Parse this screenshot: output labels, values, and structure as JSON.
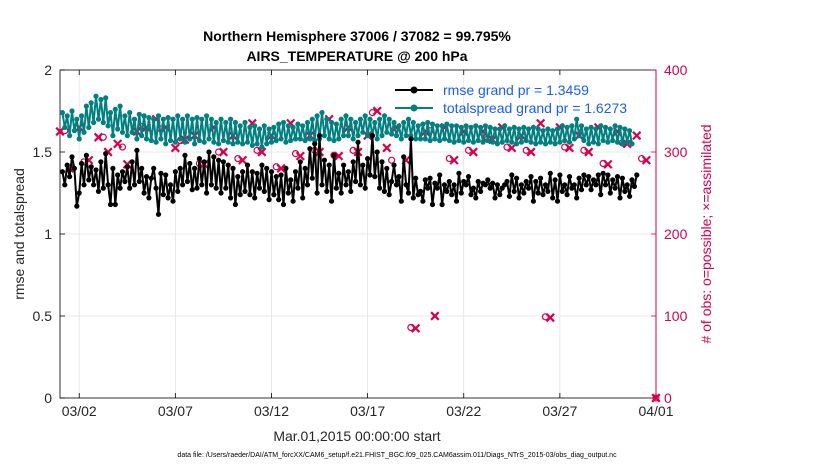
{
  "chart_data": {
    "type": "line",
    "title_line1": "Northern Hemisphere 37006 / 37082 = 99.795%",
    "title_line2": "AIRS_TEMPERATURE @ 200 hPa",
    "xlabel": "Mar.01,2015 00:00:00 start",
    "ylabel_left": "rmse and totalspread",
    "ylabel_right": "# of obs: o=possible; ×=assimilated",
    "footer": "data file: /Users/raeder/DAI/ATM_forcXX/CAM6_setup/f.e21.FHIST_BGC.f09_025.CAM6assim.011/Diags_NTrS_2015-03/obs_diag_output.nc",
    "xlim": [
      0,
      31
    ],
    "ylim_left": [
      0,
      2
    ],
    "ylim_right": [
      0,
      400
    ],
    "x_ticks": [
      1,
      6,
      11,
      16,
      21,
      26,
      31
    ],
    "x_tick_labels": [
      "03/02",
      "03/07",
      "03/12",
      "03/17",
      "03/22",
      "03/27",
      "04/01"
    ],
    "y_ticks_left": [
      0,
      0.5,
      1,
      1.5,
      2
    ],
    "y_tick_labels_left": [
      "0",
      "0.5",
      "1",
      "1.5",
      "2"
    ],
    "y_ticks_right": [
      0,
      100,
      200,
      300,
      400
    ],
    "y_tick_labels_right": [
      "0",
      "100",
      "200",
      "300",
      "400"
    ],
    "grid": true,
    "legend_position": "top-right",
    "series": [
      {
        "name": "rmse grand pr = 1.3459",
        "axis": "left",
        "color": "#000000",
        "x_start": 0.125,
        "x_step": 0.125,
        "values": [
          1.38,
          1.3,
          1.42,
          1.35,
          1.47,
          1.4,
          1.17,
          1.25,
          1.43,
          1.3,
          1.48,
          1.33,
          1.41,
          1.3,
          1.39,
          1.26,
          1.44,
          1.28,
          1.49,
          1.3,
          1.18,
          1.4,
          1.18,
          1.36,
          1.28,
          1.38,
          1.32,
          1.41,
          1.28,
          1.44,
          1.3,
          1.51,
          1.32,
          1.4,
          1.25,
          1.35,
          1.22,
          1.34,
          1.4,
          1.28,
          1.12,
          1.37,
          1.24,
          1.36,
          1.22,
          1.3,
          1.2,
          1.38,
          1.26,
          1.4,
          1.3,
          1.48,
          1.32,
          1.43,
          1.27,
          1.4,
          1.28,
          1.46,
          1.3,
          1.44,
          1.25,
          1.5,
          1.3,
          1.47,
          1.28,
          1.45,
          1.25,
          1.44,
          1.28,
          1.42,
          1.22,
          1.4,
          1.18,
          1.35,
          1.24,
          1.38,
          1.26,
          1.42,
          1.24,
          1.38,
          1.22,
          1.37,
          1.28,
          1.42,
          1.26,
          1.4,
          1.21,
          1.38,
          1.24,
          1.35,
          1.21,
          1.36,
          1.18,
          1.4,
          1.25,
          1.33,
          1.2,
          1.38,
          1.28,
          1.44,
          1.22,
          1.4,
          1.3,
          1.52,
          1.34,
          1.55,
          1.25,
          1.6,
          1.3,
          1.45,
          1.26,
          1.42,
          1.2,
          1.48,
          1.28,
          1.37,
          1.25,
          1.42,
          1.3,
          1.38,
          1.26,
          1.44,
          1.32,
          1.56,
          1.3,
          1.42,
          1.28,
          1.46,
          1.36,
          1.6,
          1.35,
          1.5,
          1.28,
          1.44,
          1.26,
          1.4,
          1.24,
          1.32,
          1.42,
          1.3,
          1.35,
          1.2,
          1.47,
          1.3,
          1.25,
          1.58,
          1.22,
          1.34,
          1.24,
          1.26,
          1.2,
          1.33,
          1.28,
          1.34,
          1.18,
          1.31,
          1.28,
          1.36,
          1.18,
          1.3,
          1.26,
          1.32,
          1.24,
          1.3,
          1.2,
          1.37,
          1.25,
          1.32,
          1.3,
          1.35,
          1.24,
          1.28,
          1.22,
          1.32,
          1.26,
          1.31,
          1.3,
          1.33,
          1.28,
          1.31,
          1.22,
          1.3,
          1.24,
          1.28,
          1.3,
          1.32,
          1.23,
          1.36,
          1.26,
          1.34,
          1.22,
          1.3,
          1.25,
          1.32,
          1.28,
          1.35,
          1.2,
          1.32,
          1.25,
          1.34,
          1.24,
          1.3,
          1.26,
          1.37,
          1.22,
          1.33,
          1.2,
          1.36,
          1.26,
          1.3,
          1.24,
          1.35,
          1.28,
          1.3,
          1.22,
          1.34,
          1.27,
          1.36,
          1.3,
          1.35,
          1.27,
          1.33,
          1.3,
          1.36,
          1.24,
          1.37,
          1.3,
          1.36,
          1.25,
          1.33,
          1.28,
          1.35,
          1.22,
          1.34,
          1.26,
          1.3,
          1.23,
          1.33,
          1.29,
          1.36
        ]
      },
      {
        "name": "totalspread grand pr = 1.6273",
        "axis": "left",
        "color": "#008080",
        "x_start": 0.125,
        "x_step": 0.125,
        "values": [
          1.74,
          1.65,
          1.72,
          1.6,
          1.75,
          1.63,
          1.7,
          1.58,
          1.72,
          1.62,
          1.78,
          1.65,
          1.8,
          1.68,
          1.84,
          1.7,
          1.82,
          1.68,
          1.83,
          1.66,
          1.74,
          1.6,
          1.76,
          1.64,
          1.78,
          1.62,
          1.72,
          1.6,
          1.74,
          1.62,
          1.7,
          1.58,
          1.73,
          1.6,
          1.72,
          1.58,
          1.71,
          1.57,
          1.7,
          1.56,
          1.72,
          1.58,
          1.7,
          1.55,
          1.71,
          1.57,
          1.7,
          1.56,
          1.72,
          1.58,
          1.7,
          1.56,
          1.72,
          1.58,
          1.7,
          1.55,
          1.71,
          1.57,
          1.7,
          1.56,
          1.72,
          1.58,
          1.7,
          1.56,
          1.68,
          1.55,
          1.7,
          1.57,
          1.68,
          1.56,
          1.7,
          1.55,
          1.68,
          1.56,
          1.66,
          1.55,
          1.68,
          1.56,
          1.65,
          1.54,
          1.66,
          1.55,
          1.64,
          1.53,
          1.66,
          1.55,
          1.64,
          1.56,
          1.65,
          1.57,
          1.67,
          1.58,
          1.68,
          1.56,
          1.66,
          1.57,
          1.65,
          1.58,
          1.67,
          1.58,
          1.66,
          1.57,
          1.68,
          1.58,
          1.7,
          1.57,
          1.72,
          1.58,
          1.74,
          1.6,
          1.7,
          1.58,
          1.68,
          1.57,
          1.67,
          1.58,
          1.7,
          1.6,
          1.72,
          1.6,
          1.7,
          1.58,
          1.68,
          1.6,
          1.7,
          1.62,
          1.72,
          1.6,
          1.7,
          1.6,
          1.68,
          1.58,
          1.7,
          1.6,
          1.72,
          1.62,
          1.7,
          1.61,
          1.68,
          1.6,
          1.66,
          1.58,
          1.68,
          1.6,
          1.7,
          1.6,
          1.68,
          1.58,
          1.66,
          1.58,
          1.67,
          1.58,
          1.68,
          1.57,
          1.67,
          1.58,
          1.66,
          1.57,
          1.66,
          1.58,
          1.67,
          1.57,
          1.66,
          1.56,
          1.66,
          1.57,
          1.65,
          1.56,
          1.66,
          1.57,
          1.65,
          1.56,
          1.66,
          1.57,
          1.65,
          1.56,
          1.66,
          1.57,
          1.65,
          1.56,
          1.64,
          1.55,
          1.64,
          1.56,
          1.66,
          1.57,
          1.64,
          1.56,
          1.65,
          1.55,
          1.64,
          1.56,
          1.65,
          1.57,
          1.64,
          1.56,
          1.65,
          1.55,
          1.64,
          1.56,
          1.63,
          1.55,
          1.64,
          1.56,
          1.63,
          1.55,
          1.64,
          1.56,
          1.66,
          1.57,
          1.65,
          1.56,
          1.66,
          1.58,
          1.7,
          1.6,
          1.66,
          1.57,
          1.64,
          1.55,
          1.65,
          1.56,
          1.64,
          1.55,
          1.66,
          1.57,
          1.65,
          1.56,
          1.64,
          1.57,
          1.66,
          1.56,
          1.65,
          1.55,
          1.64,
          1.56,
          1.63,
          1.55
        ]
      },
      {
        "name": "obs assimilated",
        "axis": "right",
        "color": "#d6004e",
        "marker": "cross",
        "points": [
          [
            0.0,
            325
          ],
          [
            0.5,
            280
          ],
          [
            1.0,
            330
          ],
          [
            1.5,
            290
          ],
          [
            2.0,
            318
          ],
          [
            2.5,
            300
          ],
          [
            3.0,
            310
          ],
          [
            3.5,
            285
          ],
          [
            4.0,
            325
          ],
          [
            4.5,
            330
          ],
          [
            5.0,
            340
          ],
          [
            5.5,
            330
          ],
          [
            6.0,
            305
          ],
          [
            6.5,
            315
          ],
          [
            7.0,
            320
          ],
          [
            7.5,
            285
          ],
          [
            8.0,
            330
          ],
          [
            8.5,
            300
          ],
          [
            9.0,
            320
          ],
          [
            9.5,
            290
          ],
          [
            10.0,
            335
          ],
          [
            10.5,
            300
          ],
          [
            11.0,
            320
          ],
          [
            11.5,
            280
          ],
          [
            12.0,
            335
          ],
          [
            12.5,
            295
          ],
          [
            13.0,
            320
          ],
          [
            13.5,
            300
          ],
          [
            14.0,
            340
          ],
          [
            14.5,
            295
          ],
          [
            15.0,
            330
          ],
          [
            15.5,
            300
          ],
          [
            16.0,
            320
          ],
          [
            16.5,
            350
          ],
          [
            17.0,
            305
          ],
          [
            17.5,
            330
          ],
          [
            18.0,
            290
          ],
          [
            18.5,
            85
          ],
          [
            19.0,
            325
          ],
          [
            19.5,
            100
          ],
          [
            20.0,
            330
          ],
          [
            20.5,
            290
          ],
          [
            21.0,
            325
          ],
          [
            21.5,
            300
          ],
          [
            22.0,
            325
          ],
          [
            22.5,
            315
          ],
          [
            23.0,
            330
          ],
          [
            23.5,
            305
          ],
          [
            24.0,
            320
          ],
          [
            24.5,
            300
          ],
          [
            25.0,
            335
          ],
          [
            25.5,
            98
          ],
          [
            26.0,
            330
          ],
          [
            26.5,
            305
          ],
          [
            27.0,
            320
          ],
          [
            27.5,
            300
          ],
          [
            28.0,
            330
          ],
          [
            28.5,
            285
          ],
          [
            29.0,
            325
          ],
          [
            29.5,
            310
          ],
          [
            30.0,
            320
          ],
          [
            30.5,
            290
          ],
          [
            31.0,
            0
          ]
        ]
      },
      {
        "name": "obs possible",
        "axis": "right",
        "color": "#d6004e",
        "marker": "circle",
        "points": [
          [
            0.25,
            326
          ],
          [
            1.25,
            288
          ],
          [
            2.25,
            318
          ],
          [
            3.25,
            306
          ],
          [
            4.25,
            331
          ],
          [
            5.25,
            328
          ],
          [
            6.25,
            314
          ],
          [
            7.25,
            286
          ],
          [
            8.25,
            300
          ],
          [
            9.25,
            292
          ],
          [
            10.25,
            302
          ],
          [
            11.25,
            282
          ],
          [
            12.25,
            298
          ],
          [
            13.25,
            302
          ],
          [
            14.25,
            296
          ],
          [
            15.25,
            302
          ],
          [
            16.25,
            348
          ],
          [
            17.25,
            290
          ],
          [
            18.25,
            86
          ],
          [
            19.25,
            326
          ],
          [
            20.25,
            292
          ],
          [
            21.25,
            302
          ],
          [
            22.25,
            316
          ],
          [
            23.25,
            306
          ],
          [
            24.25,
            302
          ],
          [
            25.25,
            99
          ],
          [
            26.25,
            306
          ],
          [
            27.25,
            302
          ],
          [
            28.25,
            286
          ],
          [
            29.25,
            311
          ],
          [
            30.25,
            292
          ],
          [
            31.0,
            0
          ]
        ]
      }
    ]
  }
}
